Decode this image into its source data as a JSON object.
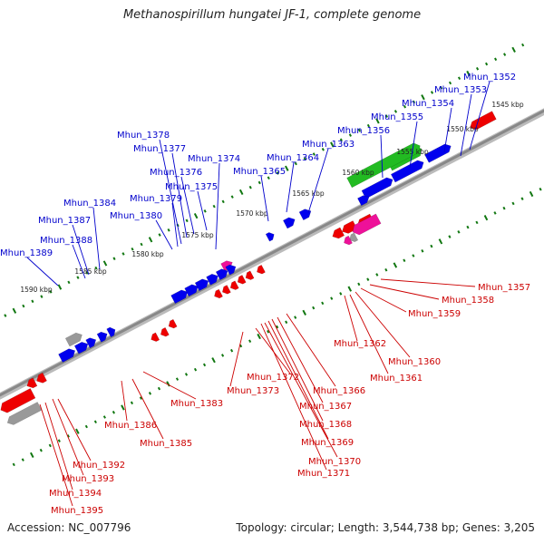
{
  "title": "Methanospirillum hungatei JF-1, complete genome",
  "footer": {
    "accession": "Accession: NC_007796",
    "topology": "Topology: circular; Length: 3,544,738 bp; Genes: 3,205"
  },
  "colors": {
    "blue_gene": "#0000ee",
    "red_gene": "#ee0000",
    "green_gene": "#22bb22",
    "magenta_gene": "#ee1199",
    "gray_gene": "#999999",
    "backbone": "#888888",
    "tick": "#117711",
    "label_blue": "#0000cc",
    "label_red": "#cc0000"
  },
  "ruler_labels": [
    {
      "text": "1545 kbp"
    },
    {
      "text": "1550 kbp"
    },
    {
      "text": "1555 kbp"
    },
    {
      "text": "1560 kbp"
    },
    {
      "text": "1565 kbp"
    },
    {
      "text": "1570 kbp"
    },
    {
      "text": "1575 kbp"
    },
    {
      "text": "1580 kbp"
    },
    {
      "text": "1585 kbp"
    },
    {
      "text": "1590 kbp"
    }
  ],
  "blue_labels": [
    {
      "text": "Mhun_1352"
    },
    {
      "text": "Mhun_1353"
    },
    {
      "text": "Mhun_1354"
    },
    {
      "text": "Mhun_1355"
    },
    {
      "text": "Mhun_1356"
    },
    {
      "text": "Mhun_1363"
    },
    {
      "text": "Mhun_1364"
    },
    {
      "text": "Mhun_1365"
    },
    {
      "text": "Mhun_1374"
    },
    {
      "text": "Mhun_1375"
    },
    {
      "text": "Mhun_1376"
    },
    {
      "text": "Mhun_1377"
    },
    {
      "text": "Mhun_1378"
    },
    {
      "text": "Mhun_1379"
    },
    {
      "text": "Mhun_1380"
    },
    {
      "text": "Mhun_1384"
    },
    {
      "text": "Mhun_1387"
    },
    {
      "text": "Mhun_1388"
    },
    {
      "text": "Mhun_1389"
    }
  ],
  "red_labels": [
    {
      "text": "Mhun_1357"
    },
    {
      "text": "Mhun_1358"
    },
    {
      "text": "Mhun_1359"
    },
    {
      "text": "Mhun_1360"
    },
    {
      "text": "Mhun_1361"
    },
    {
      "text": "Mhun_1362"
    },
    {
      "text": "Mhun_1366"
    },
    {
      "text": "Mhun_1367"
    },
    {
      "text": "Mhun_1368"
    },
    {
      "text": "Mhun_1369"
    },
    {
      "text": "Mhun_1370"
    },
    {
      "text": "Mhun_1371"
    },
    {
      "text": "Mhun_1372"
    },
    {
      "text": "Mhun_1373"
    },
    {
      "text": "Mhun_1383"
    },
    {
      "text": "Mhun_1385"
    },
    {
      "text": "Mhun_1386"
    },
    {
      "text": "Mhun_1392"
    },
    {
      "text": "Mhun_1393"
    },
    {
      "text": "Mhun_1394"
    },
    {
      "text": "Mhun_1395"
    }
  ]
}
